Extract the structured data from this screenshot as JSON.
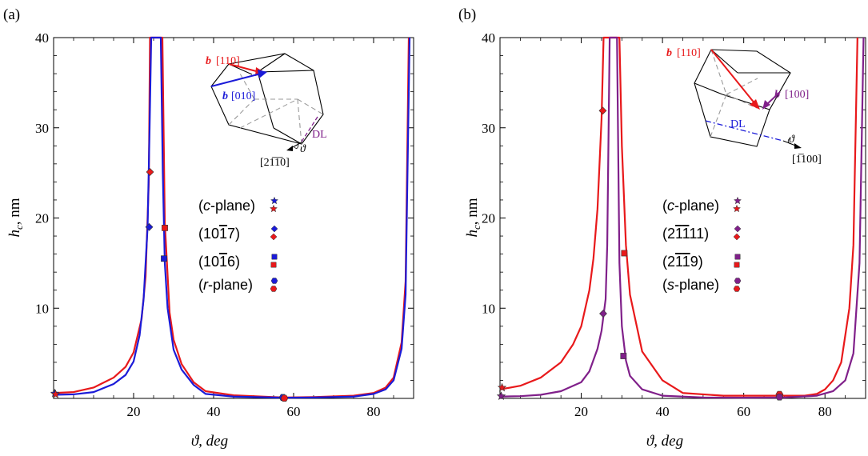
{
  "chart_data": [
    {
      "panel": "(a)",
      "type": "line",
      "xlabel": "ϑ, deg",
      "ylabel": "hc, nm",
      "xlim": [
        0,
        90
      ],
      "ylim": [
        0,
        40
      ],
      "xticks": [
        20,
        40,
        60,
        80
      ],
      "yticks": [
        10,
        20,
        30,
        40
      ],
      "grid": false,
      "series": [
        {
          "color": "#e8191b",
          "x": [
            0,
            5,
            10,
            15,
            18,
            20,
            22,
            23,
            23.8,
            24.1,
            24.5,
            25.5,
            26.5,
            27.2,
            27.8,
            29,
            30,
            32,
            35,
            38,
            45,
            55,
            58,
            65,
            75,
            80,
            83,
            85,
            87,
            88,
            88.8
          ],
          "y": [
            0.6,
            0.7,
            1.2,
            2.3,
            3.5,
            5.1,
            8.8,
            13.5,
            24,
            40,
            40,
            40,
            40,
            40,
            19.5,
            9.5,
            6.5,
            3.8,
            1.8,
            0.8,
            0.35,
            0.15,
            0.1,
            0.15,
            0.3,
            0.6,
            1.2,
            2.3,
            6.2,
            13,
            40
          ]
        },
        {
          "color": "#1b1bd8",
          "x": [
            0,
            5,
            10,
            15,
            18,
            20,
            21.5,
            22.5,
            23.5,
            24,
            24.4,
            25,
            26.2,
            26.8,
            27.3,
            27.8,
            28.5,
            30,
            32,
            35,
            38,
            45,
            55,
            58,
            65,
            75,
            80,
            83,
            85,
            87,
            88,
            89
          ],
          "y": [
            0.4,
            0.45,
            0.7,
            1.6,
            2.6,
            4.1,
            7,
            11,
            19,
            30,
            40,
            40,
            40,
            40,
            25,
            15,
            10,
            5.4,
            3.2,
            1.5,
            0.5,
            0.2,
            0.1,
            0.08,
            0.1,
            0.2,
            0.5,
            1,
            2,
            5.5,
            11.5,
            40
          ]
        }
      ],
      "markers": [
        {
          "shape": "diamond",
          "color": "#e8191b",
          "x": 24.1,
          "y": 25.1
        },
        {
          "shape": "diamond",
          "color": "#1b1bd8",
          "x": 23.9,
          "y": 19
        },
        {
          "shape": "square",
          "color": "#e8191b",
          "x": 27.8,
          "y": 18.9
        },
        {
          "shape": "square",
          "color": "#1b1bd8",
          "x": 27.6,
          "y": 15.5
        },
        {
          "shape": "star",
          "color": "#1b1bd8",
          "x": 0.3,
          "y": 0.55
        },
        {
          "shape": "star",
          "color": "#e8191b",
          "x": 0.5,
          "y": 0.45
        },
        {
          "shape": "hexagon",
          "color": "#1b1bd8",
          "x": 57.3,
          "y": 0.1
        },
        {
          "shape": "hexagon",
          "color": "#e8191b",
          "x": 57.7,
          "y": 0.02
        }
      ],
      "legend": [
        {
          "label": "(c-plane)",
          "shape": "star"
        },
        {
          "label": "(10-17)",
          "shape": "diamond"
        },
        {
          "label": "(10-16)",
          "shape": "square"
        },
        {
          "label": "(r-plane)",
          "shape": "hexagon"
        }
      ],
      "inset": {
        "labels": [
          "b",
          "[110]",
          "b",
          "[010]",
          "DL",
          "ϑ",
          "[2-1-10]"
        ]
      }
    },
    {
      "panel": "(b)",
      "type": "line",
      "xlabel": "ϑ, deg",
      "ylabel": "hc, nm",
      "xlim": [
        0,
        90
      ],
      "ylim": [
        0,
        40
      ],
      "xticks": [
        20,
        40,
        60,
        80
      ],
      "yticks": [
        10,
        20,
        30,
        40
      ],
      "grid": false,
      "series": [
        {
          "color": "#e8191b",
          "x": [
            0,
            5,
            10,
            15,
            18,
            20,
            22,
            23,
            24,
            25,
            25.5,
            26,
            26.6,
            27.5,
            28.8,
            29.4,
            30,
            31,
            32,
            35,
            40,
            45,
            55,
            65,
            70,
            75,
            78,
            80,
            82,
            84,
            86,
            87,
            88
          ],
          "y": [
            1,
            1.4,
            2.3,
            4,
            6,
            8,
            12,
            15.5,
            21,
            31,
            40,
            40,
            40,
            40,
            40,
            40,
            28,
            17,
            11.5,
            5.2,
            2,
            0.6,
            0.3,
            0.3,
            0.3,
            0.3,
            0.5,
            1,
            2,
            4,
            10,
            17,
            40
          ]
        },
        {
          "color": "#80208a",
          "x": [
            0,
            5,
            10,
            15,
            20,
            22,
            24,
            25,
            26,
            26.4,
            27,
            27.8,
            28.3,
            28.8,
            29.4,
            30,
            31,
            32,
            35,
            40,
            50,
            60,
            70,
            78,
            82,
            85,
            87,
            88.5,
            89.5
          ],
          "y": [
            0.2,
            0.25,
            0.4,
            0.8,
            1.8,
            3,
            5.5,
            7.5,
            11,
            17,
            40,
            40,
            40,
            40,
            15,
            8,
            4.2,
            2.5,
            1,
            0.3,
            0.1,
            0.08,
            0.1,
            0.3,
            0.8,
            2,
            5,
            15,
            40
          ]
        }
      ],
      "markers": [
        {
          "shape": "diamond",
          "color": "#e8191b",
          "x": 25.3,
          "y": 31.9
        },
        {
          "shape": "diamond",
          "color": "#80208a",
          "x": 25.4,
          "y": 9.4
        },
        {
          "shape": "square",
          "color": "#e8191b",
          "x": 30.6,
          "y": 16.1
        },
        {
          "shape": "square",
          "color": "#80208a",
          "x": 30.4,
          "y": 4.7
        },
        {
          "shape": "star",
          "color": "#e8191b",
          "x": 0.5,
          "y": 1.2
        },
        {
          "shape": "star",
          "color": "#80208a",
          "x": 0.3,
          "y": 0.25
        },
        {
          "shape": "hexagon",
          "color": "#e8191b",
          "x": 68.8,
          "y": 0.45
        },
        {
          "shape": "hexagon",
          "color": "#80208a",
          "x": 68.8,
          "y": 0.15
        }
      ],
      "legend": [
        {
          "label": "(c-plane)",
          "shape": "star"
        },
        {
          "label": "(2-1-1 11)",
          "shape": "diamond"
        },
        {
          "label": "(2-1-19)",
          "shape": "square"
        },
        {
          "label": "(s-plane)",
          "shape": "hexagon"
        }
      ],
      "inset": {
        "labels": [
          "b",
          "[110]",
          "b",
          "[100]",
          "DL",
          "ϑ",
          "[-1100]"
        ]
      }
    }
  ],
  "colors": {
    "red": "#e8191b",
    "blue": "#1b1bd8",
    "purple": "#80208a",
    "gray": "#9a9a9a"
  }
}
